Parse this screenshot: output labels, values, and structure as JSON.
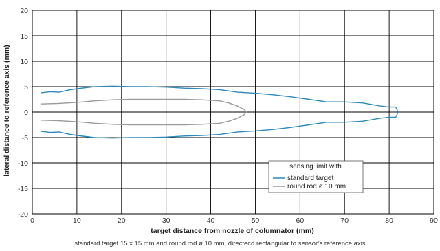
{
  "chart_data": {
    "type": "line",
    "xlabel": "target distance from nozzle of columnator (mm)",
    "ylabel": "lateral distance to reference axis (mm)",
    "xlim": [
      0,
      90
    ],
    "ylim": [
      -20,
      20
    ],
    "x_ticks": [
      "0",
      "10",
      "20",
      "30",
      "40",
      "50",
      "60",
      "70",
      "80",
      "90"
    ],
    "y_ticks": [
      "20",
      "15",
      "10",
      "5",
      "0",
      "-5",
      "-10",
      "-15",
      "-20"
    ],
    "grid": true,
    "legend": {
      "title": "sensing limit with",
      "placement": "bottom-right"
    },
    "series": [
      {
        "name": "standard target",
        "color": "#2a8ab8",
        "x": [
          2,
          4,
          6,
          8,
          10,
          14,
          18,
          22,
          26,
          30,
          34,
          38,
          42,
          46,
          50,
          54,
          58,
          62,
          66,
          70,
          74,
          78,
          80,
          81.5,
          82,
          81.5,
          80,
          78,
          74,
          70,
          66,
          62,
          58,
          54,
          50,
          46,
          42,
          38,
          34,
          30,
          26,
          22,
          18,
          14,
          10,
          8,
          6,
          4,
          2
        ],
        "y": [
          3.8,
          4.0,
          3.9,
          4.3,
          4.6,
          5.0,
          5.1,
          5.0,
          5.0,
          4.9,
          4.7,
          4.6,
          4.4,
          3.9,
          3.7,
          3.4,
          3.0,
          2.5,
          2.0,
          2.0,
          1.8,
          1.2,
          1.0,
          1.0,
          0.0,
          -1.0,
          -1.0,
          -1.2,
          -1.8,
          -2.0,
          -2.0,
          -2.5,
          -3.0,
          -3.4,
          -3.7,
          -3.9,
          -4.4,
          -4.6,
          -4.7,
          -4.9,
          -5.0,
          -5.0,
          -5.1,
          -5.0,
          -4.6,
          -4.3,
          -3.9,
          -4.0,
          -3.8
        ]
      },
      {
        "name": "round rod ø 10 mm",
        "color": "#9a9a9a",
        "x": [
          2,
          6,
          10,
          14,
          18,
          22,
          26,
          30,
          34,
          38,
          42,
          44,
          46,
          47.5,
          48,
          47.5,
          46,
          44,
          42,
          38,
          34,
          30,
          26,
          22,
          18,
          14,
          10,
          6,
          2
        ],
        "y": [
          1.6,
          1.7,
          1.9,
          2.2,
          2.4,
          2.5,
          2.5,
          2.5,
          2.5,
          2.4,
          2.2,
          1.8,
          1.2,
          0.5,
          0.0,
          -0.5,
          -1.2,
          -1.8,
          -2.2,
          -2.4,
          -2.5,
          -2.5,
          -2.5,
          -2.5,
          -2.4,
          -2.2,
          -1.9,
          -1.7,
          -1.6
        ]
      }
    ],
    "caption": "standard target 15 x 15 mm and round rod ø 10 mm, directecd rectangular to sensor’s reference axis"
  }
}
